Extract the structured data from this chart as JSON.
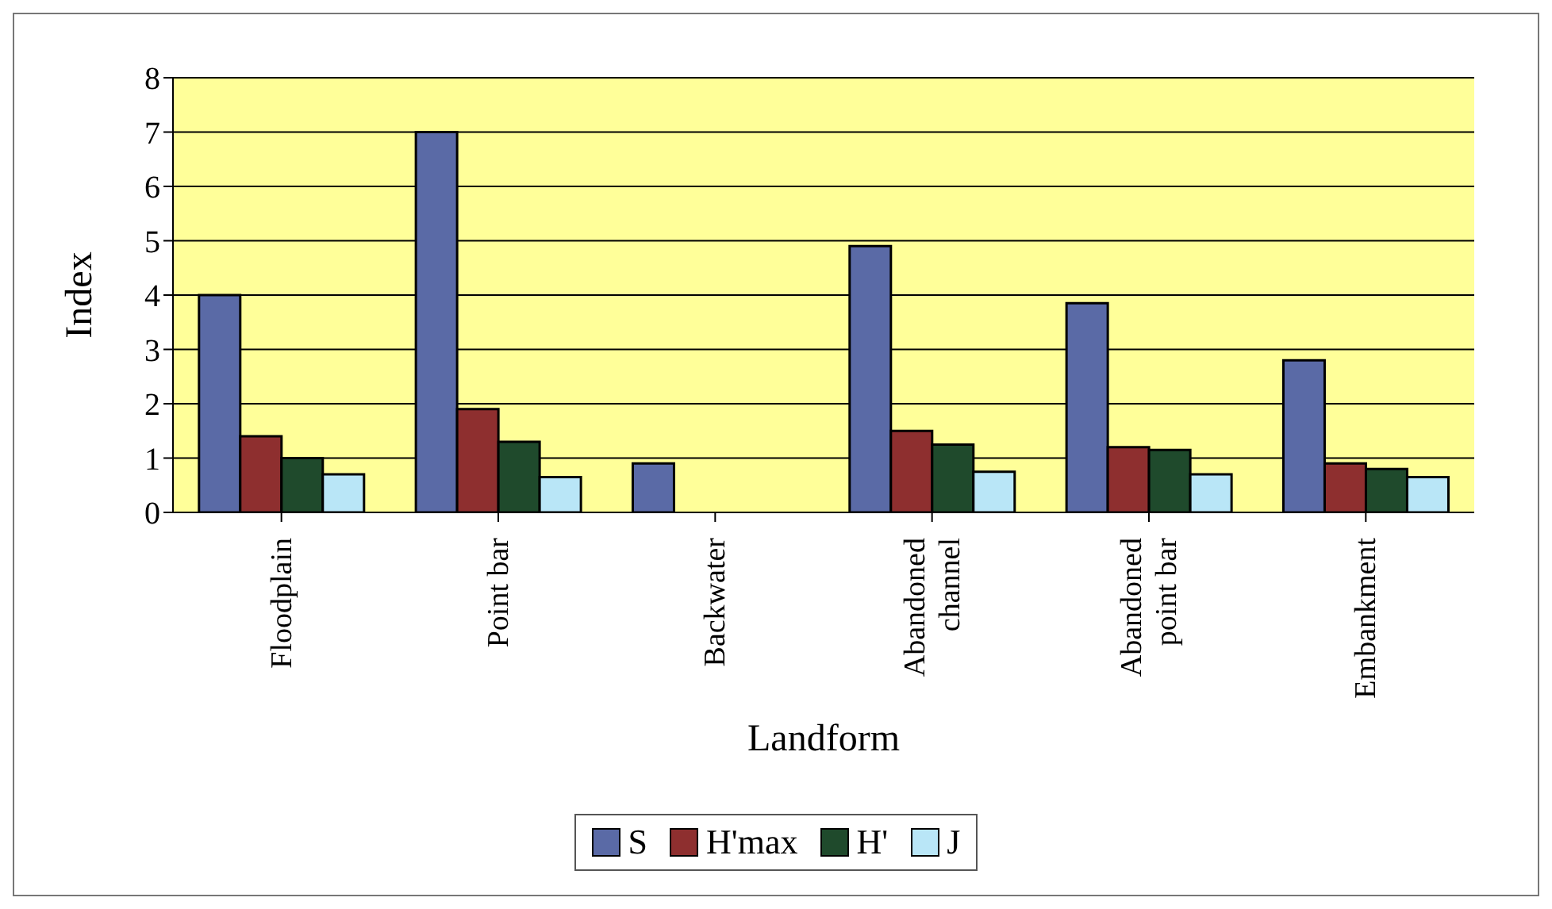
{
  "chart_data": {
    "type": "bar",
    "xlabel": "Landform",
    "ylabel": "Index",
    "categories": [
      "Floodplain",
      "Point bar",
      "Backwater",
      "Abandoned channel",
      "Abandoned point bar",
      "Embankment"
    ],
    "series": [
      {
        "name": "S",
        "color": "#5a6aa6",
        "values": [
          4,
          7,
          0.9,
          4.9,
          3.85,
          2.8
        ]
      },
      {
        "name": "H'max",
        "color": "#8e2f2f",
        "values": [
          1.4,
          1.9,
          0,
          1.5,
          1.2,
          0.9
        ]
      },
      {
        "name": "H'",
        "color": "#1f4a2c",
        "values": [
          1.0,
          1.3,
          0,
          1.25,
          1.15,
          0.8
        ]
      },
      {
        "name": "J",
        "color": "#b9e6f7",
        "values": [
          0.7,
          0.65,
          0,
          0.75,
          0.7,
          0.65
        ]
      }
    ],
    "ylim": [
      0,
      8
    ],
    "yticks": [
      0,
      1,
      2,
      3,
      4,
      5,
      6,
      7,
      8
    ],
    "grid": "y",
    "legend": "bottom"
  }
}
